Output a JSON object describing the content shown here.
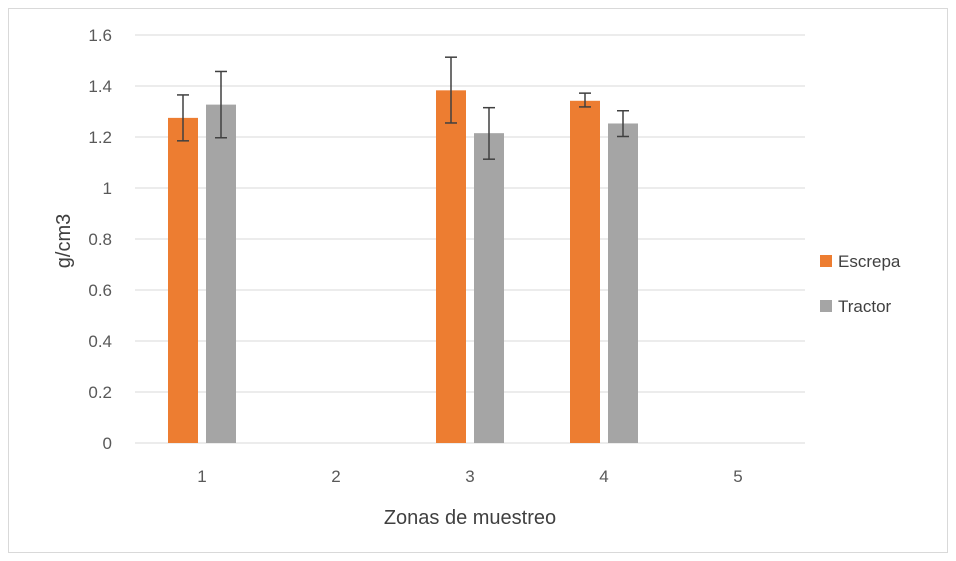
{
  "chart_data": {
    "type": "bar",
    "title": "",
    "xlabel": "Zonas de muestreo",
    "ylabel": "g/cm3",
    "ylim": [
      0,
      1.6
    ],
    "yticks": [
      0,
      0.2,
      0.4,
      0.6,
      0.8,
      1,
      1.2,
      1.4,
      1.6
    ],
    "ytick_labels": [
      "0",
      "0.2",
      "0.4",
      "0.6",
      "0.8",
      "1",
      "1.2",
      "1.4",
      "1.6"
    ],
    "categories": [
      "1",
      "2",
      "3",
      "4",
      "5"
    ],
    "grid": true,
    "legend_position": "right",
    "series": [
      {
        "name": "Escrepa",
        "color": "#ED7D31",
        "values": [
          1.275,
          null,
          1.383,
          1.342,
          null
        ],
        "error_low": [
          1.185,
          null,
          1.255,
          1.318,
          null
        ],
        "error_high": [
          1.365,
          null,
          1.513,
          1.372,
          null
        ]
      },
      {
        "name": "Tractor",
        "color": "#A5A5A5",
        "values": [
          1.327,
          null,
          1.215,
          1.253,
          null
        ],
        "error_low": [
          1.197,
          null,
          1.113,
          1.202,
          null
        ],
        "error_high": [
          1.457,
          null,
          1.315,
          1.303,
          null
        ]
      }
    ],
    "colors": {
      "gridline": "#d9d9d9",
      "errorbar": "#404040"
    }
  }
}
